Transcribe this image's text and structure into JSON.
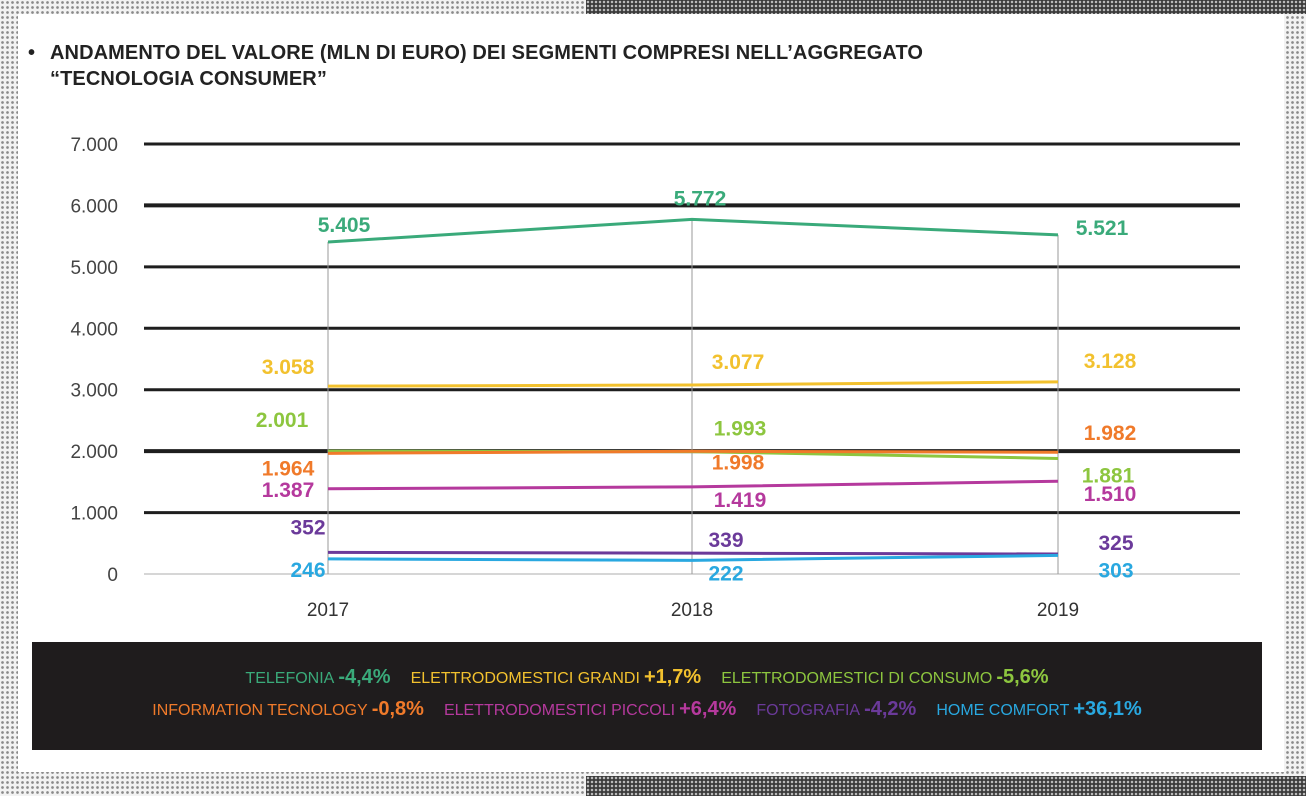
{
  "title": {
    "line1": "ANDAMENTO DEL VALORE (MLN DI EURO) DEI SEGMENTI COMPRESI NELL’AGGREGATO",
    "line2": "“TECNOLOGIA CONSUMER”"
  },
  "chart_data": {
    "type": "line",
    "title": "ANDAMENTO DEL VALORE (MLN DI EURO) DEI SEGMENTI COMPRESI NELL’AGGREGATO “TECNOLOGIA CONSUMER”",
    "categories": [
      "2017",
      "2018",
      "2019"
    ],
    "ylim": [
      0,
      7000
    ],
    "yticks": [
      0,
      1000,
      2000,
      3000,
      4000,
      5000,
      6000,
      7000
    ],
    "ytick_labels": [
      "0",
      "1.000",
      "2.000",
      "3.000",
      "4.000",
      "5.000",
      "6.000",
      "7.000"
    ],
    "grid": true,
    "series": [
      {
        "name": "TELEFONIA",
        "color": "#3aaa7a",
        "values": [
          5405,
          5772,
          5521
        ],
        "labels": [
          "5.405",
          "5.772",
          "5.521"
        ],
        "change": "-4,4%"
      },
      {
        "name": "ELETTRODOMESTICI GRANDI",
        "color": "#f2c12e",
        "values": [
          3058,
          3077,
          3128
        ],
        "labels": [
          "3.058",
          "3.077",
          "3.128"
        ],
        "change": "+1,7%"
      },
      {
        "name": "ELETTRODOMESTICI DI CONSUMO",
        "color": "#8dc63f",
        "values": [
          2001,
          1993,
          1881
        ],
        "labels": [
          "2.001",
          "1.993",
          "1.881"
        ],
        "change": "-5,6%"
      },
      {
        "name": "INFORMATION TECNOLOGY",
        "color": "#f07a2a",
        "values": [
          1964,
          1998,
          1982
        ],
        "labels": [
          "1.964",
          "1.998",
          "1.982"
        ],
        "change": "-0,8%"
      },
      {
        "name": "ELETTRODOMESTICI PICCOLI",
        "color": "#b5399d",
        "values": [
          1387,
          1419,
          1510
        ],
        "labels": [
          "1.387",
          "1.419",
          "1.510"
        ],
        "change": "+6,4%"
      },
      {
        "name": "FOTOGRAFIA",
        "color": "#6b3a9a",
        "values": [
          352,
          339,
          325
        ],
        "labels": [
          "352",
          "339",
          "325"
        ],
        "change": "-4,2%"
      },
      {
        "name": "HOME COMFORT",
        "color": "#29a8e0",
        "values": [
          246,
          222,
          303
        ],
        "labels": [
          "246",
          "222",
          "303"
        ],
        "change": "+36,1%"
      }
    ]
  },
  "legend": {
    "rows": [
      [
        {
          "name": "TELEFONIA",
          "change": "-4,4%",
          "color": "#3aaa7a"
        },
        {
          "name": "ELETTRODOMESTICI GRANDI",
          "change": "+1,7%",
          "color": "#f2c12e"
        },
        {
          "name": "ELETTRODOMESTICI DI CONSUMO",
          "change": "-5,6%",
          "color": "#8dc63f"
        }
      ],
      [
        {
          "name": "INFORMATION TECNOLOGY",
          "change": "-0,8%",
          "color": "#f07a2a"
        },
        {
          "name": "ELETTRODOMESTICI PICCOLI",
          "change": "+6,4%",
          "color": "#b5399d"
        },
        {
          "name": "FOTOGRAFIA",
          "change": "-4,2%",
          "color": "#6b3a9a"
        },
        {
          "name": "HOME COMFORT",
          "change": "+36,1%",
          "color": "#29a8e0"
        }
      ]
    ]
  }
}
